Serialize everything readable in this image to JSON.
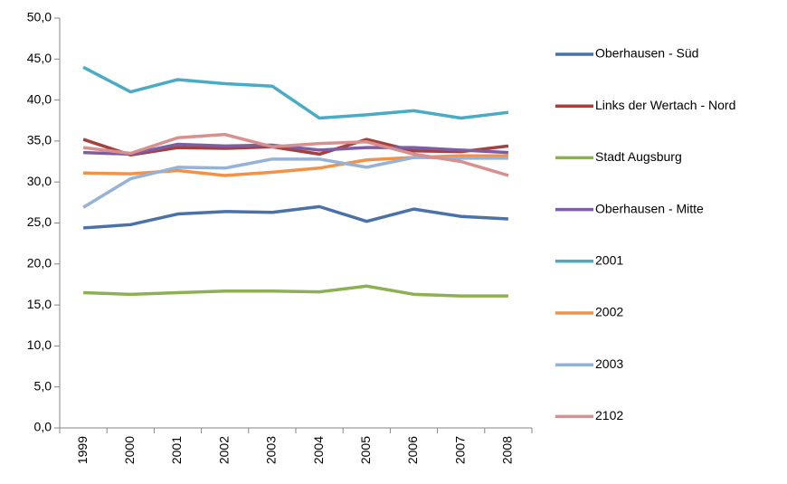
{
  "chart_data": {
    "type": "line",
    "categories": [
      "1999",
      "2000",
      "2001",
      "2002",
      "2003",
      "2004",
      "2005",
      "2006",
      "2007",
      "2008"
    ],
    "series": [
      {
        "name": "Oberhausen - Süd",
        "color": "#4a72a8",
        "values": [
          24.4,
          24.8,
          26.1,
          26.4,
          26.3,
          27.0,
          25.2,
          26.7,
          25.8,
          25.5
        ]
      },
      {
        "name": "Links der Wertach - Nord",
        "color": "#a5403d",
        "values": [
          35.2,
          33.3,
          34.2,
          34.1,
          34.3,
          33.4,
          35.2,
          33.8,
          33.7,
          34.4
        ]
      },
      {
        "name": "Stadt Augsburg",
        "color": "#8cb052",
        "values": [
          16.5,
          16.3,
          16.5,
          16.7,
          16.7,
          16.6,
          17.3,
          16.3,
          16.1,
          16.1
        ]
      },
      {
        "name": "Oberhausen - Mitte",
        "color": "#7b5ea3",
        "values": [
          33.6,
          33.4,
          34.6,
          34.4,
          34.5,
          33.9,
          34.2,
          34.2,
          33.9,
          33.6
        ]
      },
      {
        "name": "2001",
        "color": "#4aabc5",
        "values": [
          44.0,
          41.0,
          42.5,
          42.0,
          41.7,
          37.8,
          38.2,
          38.7,
          37.8,
          38.5
        ]
      },
      {
        "name": "2002",
        "color": "#f39246",
        "values": [
          31.1,
          31.0,
          31.4,
          30.8,
          31.2,
          31.7,
          32.7,
          33.0,
          33.2,
          33.2
        ]
      },
      {
        "name": "2003",
        "color": "#96b2d8",
        "values": [
          26.9,
          30.4,
          31.8,
          31.7,
          32.8,
          32.8,
          31.8,
          33.0,
          32.9,
          32.9
        ]
      },
      {
        "name": "2102",
        "color": "#d8908f",
        "values": [
          34.2,
          33.5,
          35.4,
          35.8,
          34.3,
          34.7,
          34.9,
          33.4,
          32.5,
          30.8
        ]
      }
    ],
    "ylim": [
      0,
      50
    ],
    "yticks": [
      {
        "value": 0,
        "label": "0,0"
      },
      {
        "value": 5,
        "label": "5,0"
      },
      {
        "value": 10,
        "label": "10,0"
      },
      {
        "value": 15,
        "label": "15,0"
      },
      {
        "value": 20,
        "label": "20,0"
      },
      {
        "value": 25,
        "label": "25,0"
      },
      {
        "value": 30,
        "label": "30,0"
      },
      {
        "value": 35,
        "label": "35,0"
      },
      {
        "value": 40,
        "label": "40,0"
      },
      {
        "value": 45,
        "label": "45,0"
      },
      {
        "value": 50,
        "label": "50,0"
      }
    ],
    "grid": false,
    "legend": "right"
  }
}
